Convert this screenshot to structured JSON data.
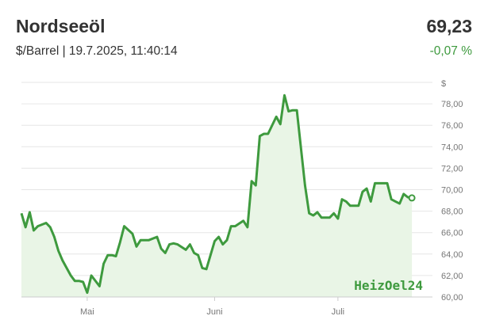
{
  "header": {
    "title": "Nordseeöl",
    "subtitle": "$/Barrel | 19.7.2025, 11:40:14",
    "price": "69,23",
    "change": "-0,07 %"
  },
  "watermark": "HeizOel24",
  "colors": {
    "line": "#3e9a3e",
    "fill": "#e9f5e6",
    "grid": "#e6e6e6",
    "positive": "#3e9a3e"
  },
  "chart_data": {
    "type": "area",
    "ylabel": "$",
    "ylim": [
      60,
      80
    ],
    "yticks": [
      60,
      62,
      64,
      66,
      68,
      70,
      72,
      74,
      76,
      78
    ],
    "ytick_labels": [
      "60,00",
      "62,00",
      "64,00",
      "66,00",
      "68,00",
      "70,00",
      "72,00",
      "74,00",
      "76,00",
      "78,00"
    ],
    "xlim": [
      "2025-04-15",
      "2025-07-24"
    ],
    "xticks": [
      {
        "date": "2025-05-01",
        "label": "Mai"
      },
      {
        "date": "2025-06-01",
        "label": "Juni"
      },
      {
        "date": "2025-07-01",
        "label": "Juli"
      }
    ],
    "grid": true,
    "series": [
      {
        "x": [
          "2025-04-15",
          "2025-04-16",
          "2025-04-17",
          "2025-04-18",
          "2025-04-19",
          "2025-04-21",
          "2025-04-22",
          "2025-04-23",
          "2025-04-24",
          "2025-04-25",
          "2025-04-27",
          "2025-04-28",
          "2025-04-29",
          "2025-04-30",
          "2025-05-01",
          "2025-05-02",
          "2025-05-04",
          "2025-05-05",
          "2025-05-06",
          "2025-05-07",
          "2025-05-08",
          "2025-05-09",
          "2025-05-10",
          "2025-05-12",
          "2025-05-13",
          "2025-05-14",
          "2025-05-15",
          "2025-05-16",
          "2025-05-18",
          "2025-05-19",
          "2025-05-20",
          "2025-05-21",
          "2025-05-22",
          "2025-05-23",
          "2025-05-25",
          "2025-05-26",
          "2025-05-27",
          "2025-05-28",
          "2025-05-29",
          "2025-05-30",
          "2025-06-01",
          "2025-06-02",
          "2025-06-03",
          "2025-06-04",
          "2025-06-05",
          "2025-06-06",
          "2025-06-08",
          "2025-06-09",
          "2025-06-10",
          "2025-06-11",
          "2025-06-12",
          "2025-06-13",
          "2025-06-14",
          "2025-06-16",
          "2025-06-17",
          "2025-06-18",
          "2025-06-19",
          "2025-06-20",
          "2025-06-21",
          "2025-06-23",
          "2025-06-24",
          "2025-06-25",
          "2025-06-26",
          "2025-06-27",
          "2025-06-29",
          "2025-06-30",
          "2025-07-01",
          "2025-07-02",
          "2025-07-03",
          "2025-07-04",
          "2025-07-06",
          "2025-07-07",
          "2025-07-08",
          "2025-07-09",
          "2025-07-10",
          "2025-07-11",
          "2025-07-13",
          "2025-07-14",
          "2025-07-15",
          "2025-07-16",
          "2025-07-17",
          "2025-07-18",
          "2025-07-19"
        ],
        "values": [
          67.8,
          66.5,
          67.9,
          66.2,
          66.6,
          66.9,
          66.5,
          65.6,
          64.3,
          63.4,
          62.0,
          61.5,
          61.5,
          61.4,
          60.4,
          62.0,
          61.0,
          63.1,
          63.9,
          63.9,
          63.8,
          65.1,
          66.6,
          65.9,
          64.7,
          65.3,
          65.3,
          65.3,
          65.6,
          64.5,
          64.1,
          64.9,
          65.0,
          64.9,
          64.4,
          64.9,
          64.1,
          63.9,
          62.7,
          62.6,
          65.2,
          65.6,
          64.9,
          65.3,
          66.6,
          66.6,
          67.1,
          66.5,
          70.8,
          70.4,
          75.0,
          75.2,
          75.2,
          76.8,
          76.1,
          78.8,
          77.3,
          77.4,
          77.4,
          70.4,
          67.8,
          67.6,
          67.9,
          67.4,
          67.4,
          67.8,
          67.3,
          69.1,
          68.9,
          68.5,
          68.5,
          69.8,
          70.1,
          68.9,
          70.6,
          70.6,
          70.6,
          69.1,
          68.9,
          68.7,
          69.6,
          69.3,
          69.23
        ]
      }
    ]
  }
}
